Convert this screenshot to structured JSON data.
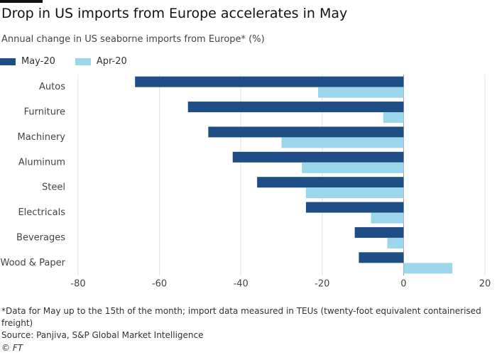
{
  "chart_data": {
    "type": "hbar",
    "title": "Drop in US imports from Europe accelerates in May",
    "subtitle": "Annual change in US seaborne imports from Europe* (%)",
    "categories": [
      "Autos",
      "Furniture",
      "Machinery",
      "Aluminum",
      "Steel",
      "Electricals",
      "Beverages",
      "Wood & Paper"
    ],
    "series": [
      {
        "name": "May-20",
        "color": "#1f4e86",
        "values": [
          -66,
          -53,
          -48,
          -42,
          -36,
          -24,
          -12,
          -11
        ]
      },
      {
        "name": "Apr-20",
        "color": "#9cd6ea",
        "values": [
          -21,
          -5,
          -30,
          -25,
          -24,
          -8,
          -4,
          12
        ]
      }
    ],
    "xlim": [
      -80,
      20
    ],
    "xticks": [
      -80,
      -60,
      -40,
      -20,
      0,
      20
    ],
    "grid": true,
    "note": "*Data for May up to the 15th of the month; import data measured in TEUs (twenty-foot equivalent containerised freight)",
    "source": "Source: Panjiva, S&P Global Market Intelligence",
    "credit": "© FT"
  }
}
